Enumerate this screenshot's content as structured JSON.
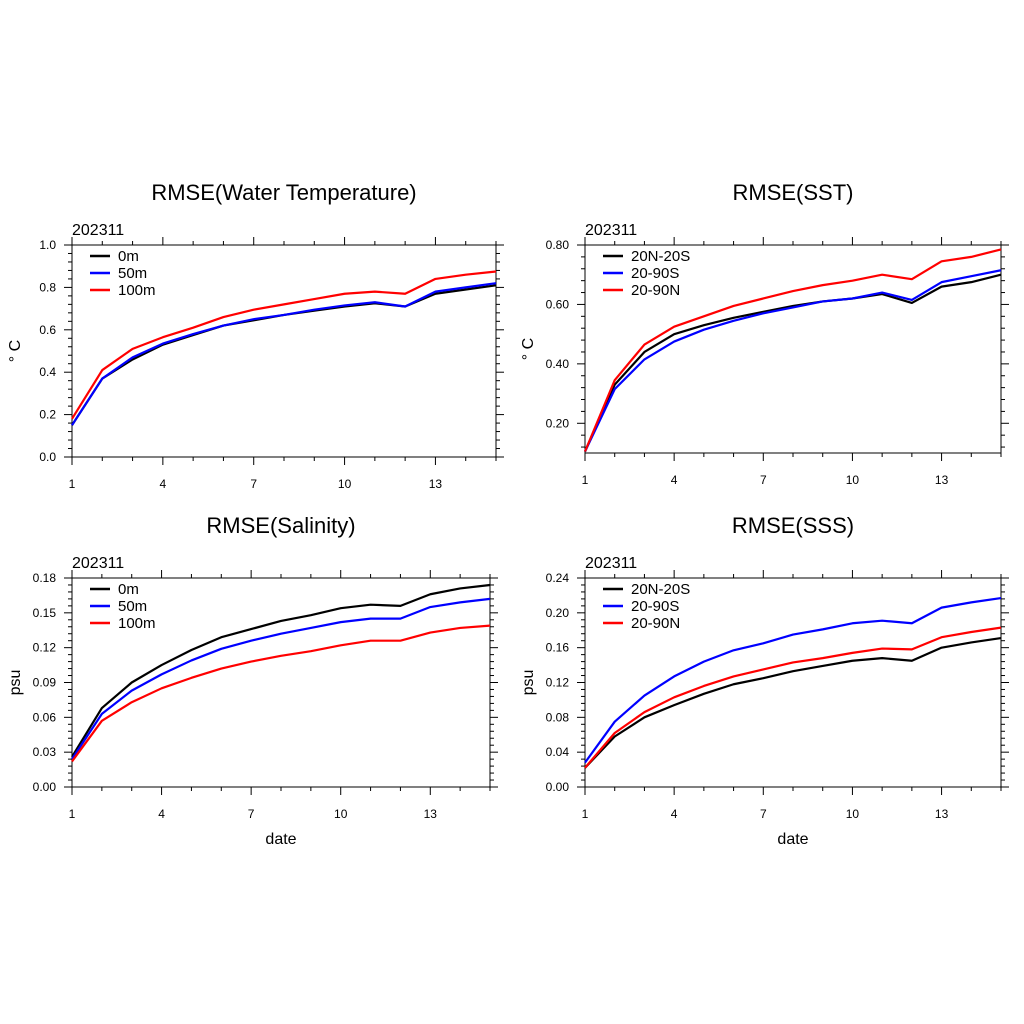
{
  "colors": {
    "black": "#000000",
    "blue": "#0000ff",
    "red": "#ff0000"
  },
  "chart_data": [
    {
      "type": "line",
      "title": "RMSE(Water Temperature)",
      "subtitle": "202311",
      "xlabel": "",
      "ylabel": "° C",
      "xlim": [
        1,
        15
      ],
      "ylim": [
        0,
        1.0
      ],
      "xticks": [
        1,
        4,
        7,
        10,
        13
      ],
      "xtick_labels": [
        "1",
        "4",
        "7",
        "10",
        "13"
      ],
      "yticks": [
        0,
        0.2,
        0.4,
        0.6,
        0.8,
        1.0
      ],
      "ytick_labels": [
        "0.0",
        "0.2",
        "0.4",
        "0.6",
        "0.8",
        "1.0"
      ],
      "legend": "top-left",
      "x": [
        1,
        2,
        3,
        4,
        5,
        6,
        7,
        8,
        9,
        10,
        11,
        12,
        13,
        14,
        15
      ],
      "series": [
        {
          "name": "0m",
          "color": "#000000",
          "values": [
            0.15,
            0.37,
            0.46,
            0.53,
            0.575,
            0.62,
            0.645,
            0.67,
            0.69,
            0.71,
            0.725,
            0.71,
            0.77,
            0.79,
            0.81
          ]
        },
        {
          "name": "50m",
          "color": "#0000ff",
          "values": [
            0.15,
            0.37,
            0.47,
            0.535,
            0.58,
            0.62,
            0.65,
            0.67,
            0.695,
            0.715,
            0.73,
            0.71,
            0.78,
            0.8,
            0.82
          ]
        },
        {
          "name": "100m",
          "color": "#ff0000",
          "values": [
            0.18,
            0.41,
            0.51,
            0.565,
            0.61,
            0.66,
            0.695,
            0.72,
            0.745,
            0.77,
            0.78,
            0.77,
            0.84,
            0.86,
            0.875
          ]
        }
      ]
    },
    {
      "type": "line",
      "title": "RMSE(SST)",
      "subtitle": "202311",
      "xlabel": "",
      "ylabel": "° C",
      "xlim": [
        1,
        15
      ],
      "ylim": [
        0.1,
        0.8
      ],
      "xticks": [
        1,
        4,
        7,
        10,
        13
      ],
      "xtick_labels": [
        "1",
        "4",
        "7",
        "10",
        "13"
      ],
      "yticks": [
        0.2,
        0.4,
        0.6,
        0.8
      ],
      "ytick_labels": [
        "0.20",
        "0.40",
        "0.60",
        "0.80"
      ],
      "legend": "top-left",
      "x": [
        1,
        2,
        3,
        4,
        5,
        6,
        7,
        8,
        9,
        10,
        11,
        12,
        13,
        14,
        15
      ],
      "series": [
        {
          "name": "20N-20S",
          "color": "#000000",
          "values": [
            0.105,
            0.33,
            0.44,
            0.5,
            0.53,
            0.555,
            0.575,
            0.595,
            0.61,
            0.62,
            0.635,
            0.605,
            0.66,
            0.675,
            0.7
          ]
        },
        {
          "name": "20-90S",
          "color": "#0000ff",
          "values": [
            0.105,
            0.315,
            0.415,
            0.475,
            0.515,
            0.545,
            0.57,
            0.59,
            0.61,
            0.62,
            0.64,
            0.615,
            0.675,
            0.695,
            0.715
          ]
        },
        {
          "name": "20-90N",
          "color": "#ff0000",
          "values": [
            0.105,
            0.345,
            0.465,
            0.525,
            0.56,
            0.595,
            0.62,
            0.645,
            0.665,
            0.68,
            0.7,
            0.685,
            0.745,
            0.76,
            0.785
          ]
        }
      ]
    },
    {
      "type": "line",
      "title": "RMSE(Salinity)",
      "subtitle": "202311",
      "xlabel": "date",
      "ylabel": "psu",
      "xlim": [
        1,
        15
      ],
      "ylim": [
        0,
        0.18
      ],
      "xticks": [
        1,
        4,
        7,
        10,
        13
      ],
      "xtick_labels": [
        "1",
        "4",
        "7",
        "10",
        "13"
      ],
      "yticks": [
        0,
        0.03,
        0.06,
        0.09,
        0.12,
        0.15,
        0.18
      ],
      "ytick_labels": [
        "0.00",
        "0.03",
        "0.06",
        "0.09",
        "0.12",
        "0.15",
        "0.18"
      ],
      "legend": "top-left",
      "x": [
        1,
        2,
        3,
        4,
        5,
        6,
        7,
        8,
        9,
        10,
        11,
        12,
        13,
        14,
        15
      ],
      "series": [
        {
          "name": "0m",
          "color": "#000000",
          "values": [
            0.026,
            0.068,
            0.09,
            0.105,
            0.118,
            0.129,
            0.136,
            0.143,
            0.148,
            0.154,
            0.157,
            0.156,
            0.166,
            0.171,
            0.174
          ]
        },
        {
          "name": "50m",
          "color": "#0000ff",
          "values": [
            0.024,
            0.063,
            0.083,
            0.097,
            0.109,
            0.119,
            0.126,
            0.132,
            0.137,
            0.142,
            0.145,
            0.145,
            0.155,
            0.159,
            0.162
          ]
        },
        {
          "name": "100m",
          "color": "#ff0000",
          "values": [
            0.022,
            0.057,
            0.073,
            0.085,
            0.094,
            0.102,
            0.108,
            0.113,
            0.117,
            0.122,
            0.126,
            0.126,
            0.133,
            0.137,
            0.139
          ]
        }
      ]
    },
    {
      "type": "line",
      "title": "RMSE(SSS)",
      "subtitle": "202311",
      "xlabel": "date",
      "ylabel": "psu",
      "xlim": [
        1,
        15
      ],
      "ylim": [
        0,
        0.24
      ],
      "xticks": [
        1,
        4,
        7,
        10,
        13
      ],
      "xtick_labels": [
        "1",
        "4",
        "7",
        "10",
        "13"
      ],
      "yticks": [
        0,
        0.04,
        0.08,
        0.12,
        0.16,
        0.2,
        0.24
      ],
      "ytick_labels": [
        "0.00",
        "0.04",
        "0.08",
        "0.12",
        "0.16",
        "0.20",
        "0.24"
      ],
      "legend": "top-left",
      "x": [
        1,
        2,
        3,
        4,
        5,
        6,
        7,
        8,
        9,
        10,
        11,
        12,
        13,
        14,
        15
      ],
      "series": [
        {
          "name": "20N-20S",
          "color": "#000000",
          "values": [
            0.022,
            0.058,
            0.08,
            0.094,
            0.107,
            0.118,
            0.125,
            0.133,
            0.139,
            0.145,
            0.148,
            0.145,
            0.16,
            0.166,
            0.171
          ]
        },
        {
          "name": "20-90S",
          "color": "#0000ff",
          "values": [
            0.028,
            0.075,
            0.105,
            0.127,
            0.144,
            0.157,
            0.165,
            0.175,
            0.181,
            0.188,
            0.191,
            0.188,
            0.206,
            0.212,
            0.217
          ]
        },
        {
          "name": "20-90N",
          "color": "#ff0000",
          "values": [
            0.022,
            0.062,
            0.086,
            0.103,
            0.116,
            0.127,
            0.135,
            0.143,
            0.148,
            0.154,
            0.159,
            0.158,
            0.172,
            0.178,
            0.183
          ]
        }
      ]
    }
  ]
}
